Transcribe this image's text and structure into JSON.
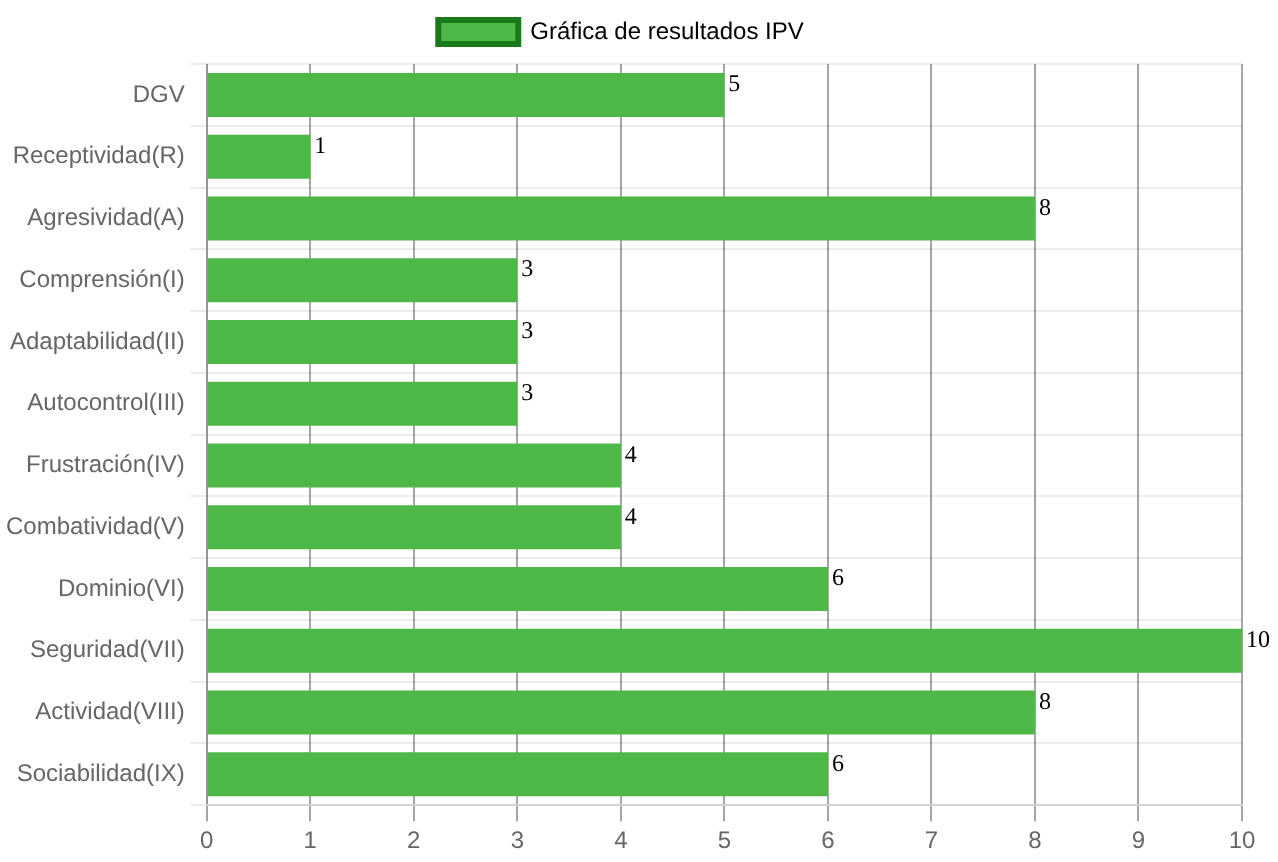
{
  "chart_data": {
    "type": "bar",
    "orientation": "horizontal",
    "categories": [
      "DGV",
      "Receptividad(R)",
      "Agresividad(A)",
      "Comprensión(I)",
      "Adaptabilidad(II)",
      "Autocontrol(III)",
      "Frustración(IV)",
      "Combatividad(V)",
      "Dominio(VI)",
      "Seguridad(VII)",
      "Actividad(VIII)",
      "Sociabilidad(IX)"
    ],
    "series": [
      {
        "name": "Gráfica de resultados IPV",
        "color": "#4db848",
        "values": [
          5,
          1,
          8,
          3,
          3,
          3,
          4,
          4,
          6,
          10,
          8,
          6
        ]
      }
    ],
    "xlim": [
      0,
      10
    ],
    "xticks": [
      0,
      1,
      2,
      3,
      4,
      5,
      6,
      7,
      8,
      9,
      10
    ],
    "grid": true,
    "legend": "top",
    "data_labels": true
  }
}
